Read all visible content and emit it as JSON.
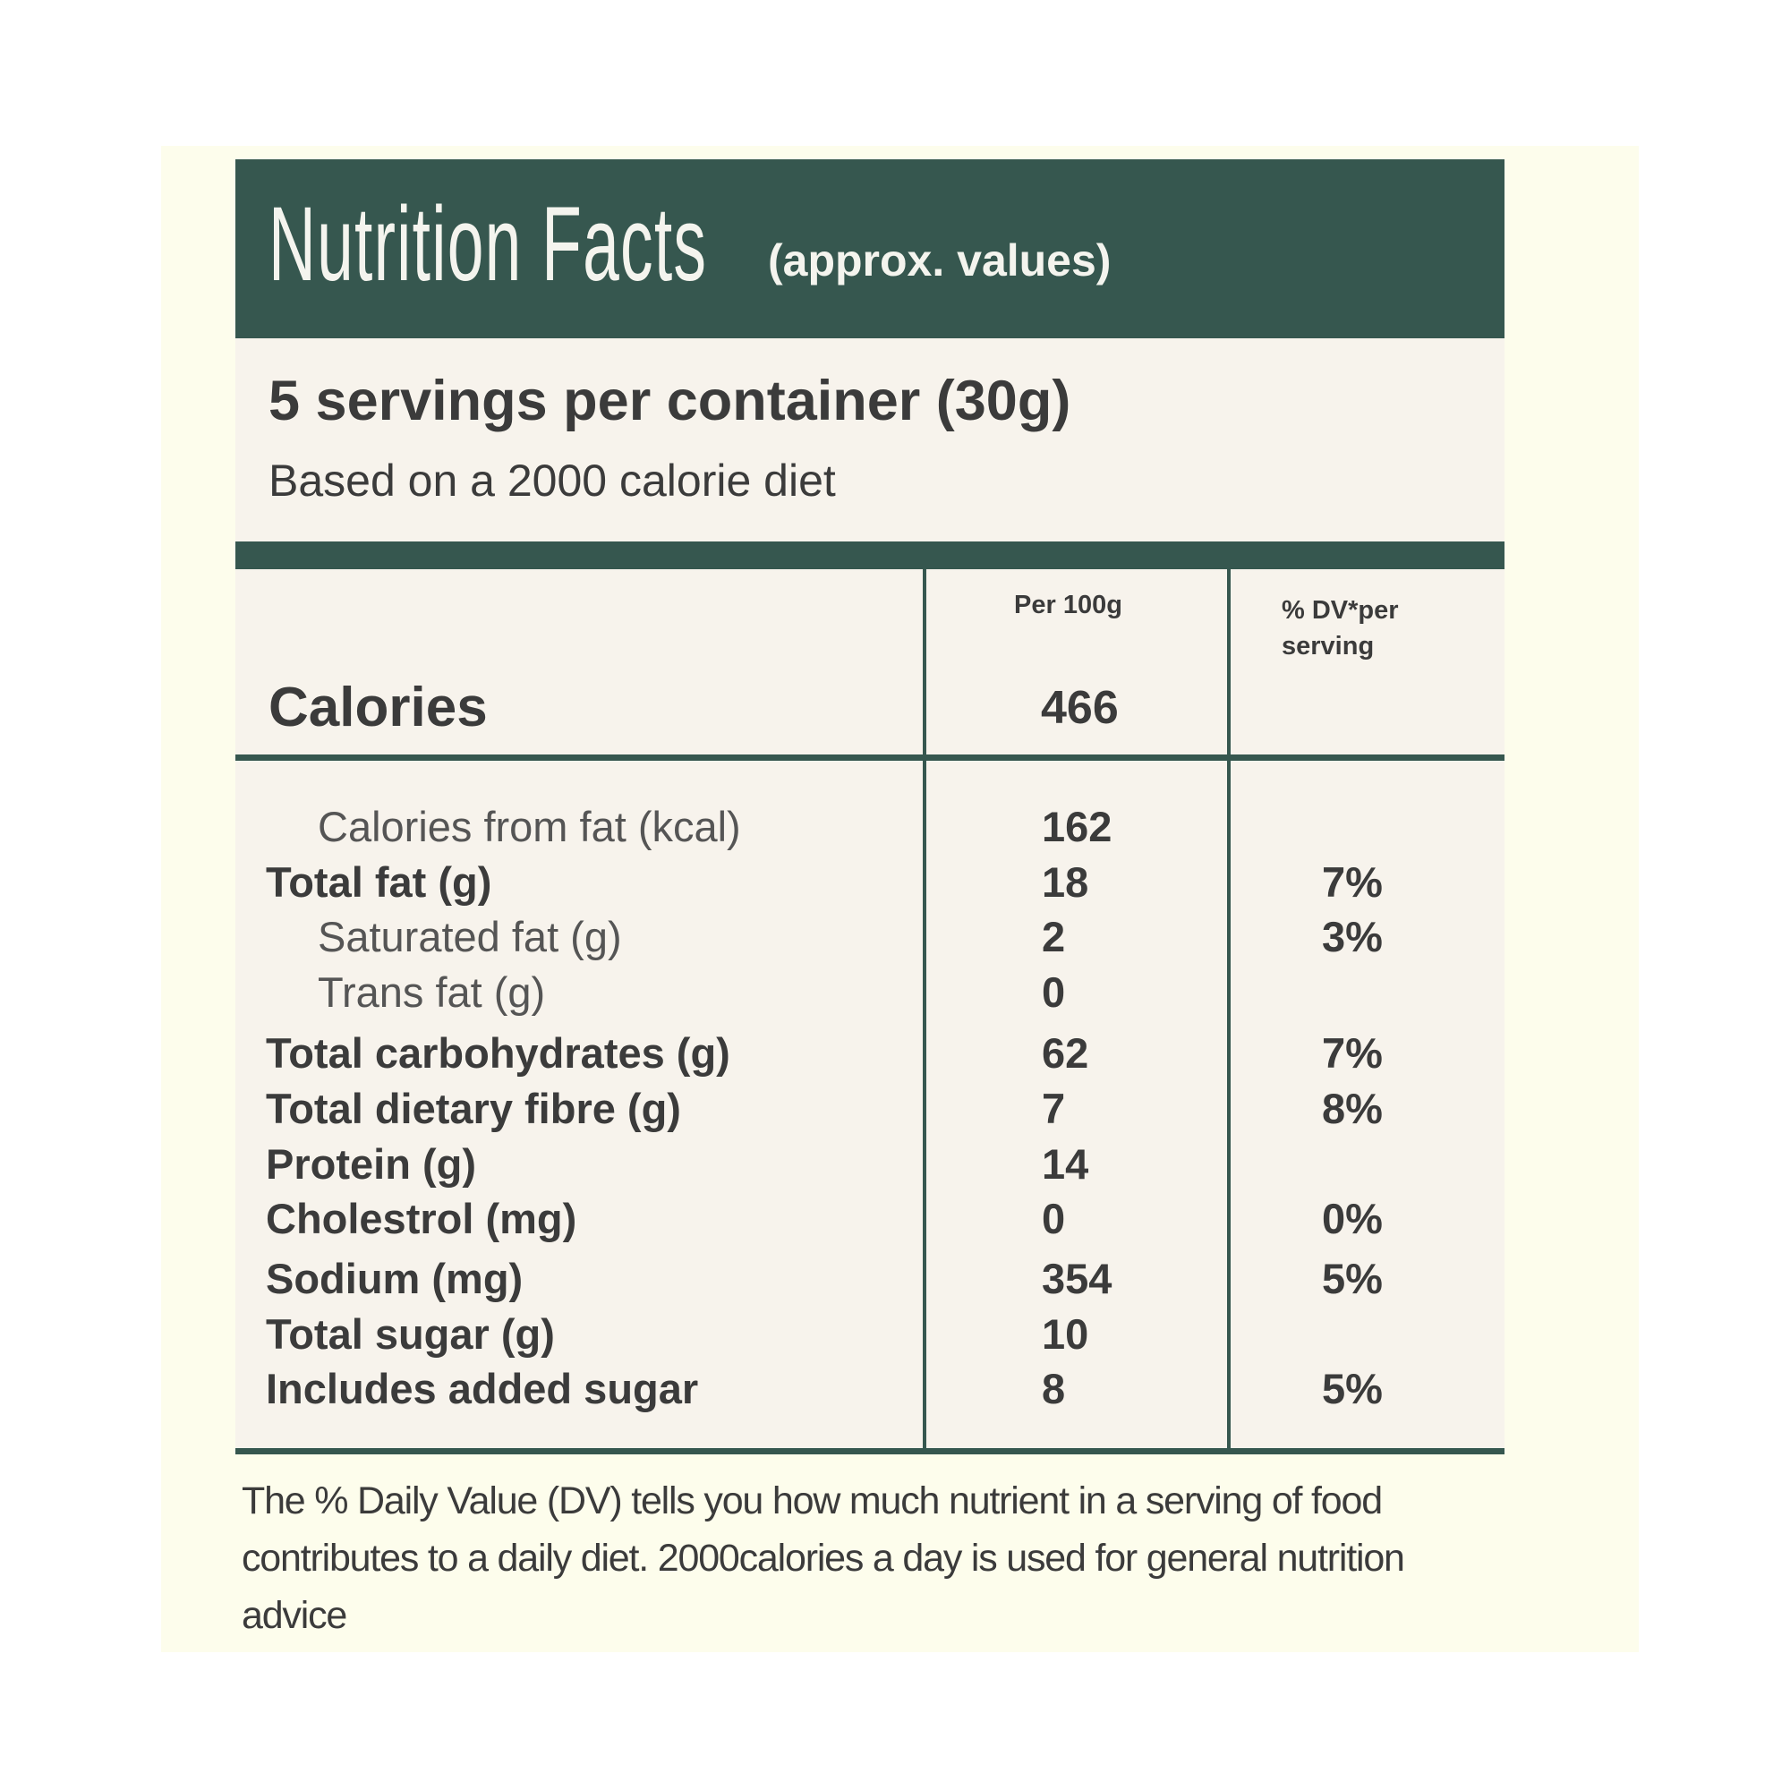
{
  "header": {
    "title": "Nutrition Facts",
    "subtitle": "(approx. values)"
  },
  "serving": {
    "servings": "5 servings per container (30g)",
    "basis": "Based on a 2000 calorie diet"
  },
  "table": {
    "columns": [
      "Per 100g",
      "% DV*per serving"
    ],
    "calories": {
      "label": "Calories",
      "value": 466
    },
    "rows": [
      [
        "Calories from fat (kcal)",
        162
      ],
      [
        "Total fat (g)",
        18,
        "7%"
      ],
      [
        "Saturated fat (g)",
        2,
        "3%"
      ],
      [
        "Trans fat (g)",
        0
      ],
      [
        "Total carbohydrates (g)",
        62,
        "7%"
      ],
      [
        "Total dietary fibre (g)",
        7,
        "8%"
      ],
      [
        "Protein (g)",
        14
      ],
      [
        "Cholestrol (mg)",
        0,
        "0%"
      ],
      [
        "Sodium (mg)",
        354,
        "5%"
      ],
      [
        "Total sugar (g)",
        10
      ],
      [
        "Includes added sugar",
        8,
        "5%"
      ]
    ]
  },
  "footer": "The % Daily Value (DV) tells you how much nutrient in a serving of food contributes to a daily diet. 2000calories a day is used for general nutrition advice"
}
